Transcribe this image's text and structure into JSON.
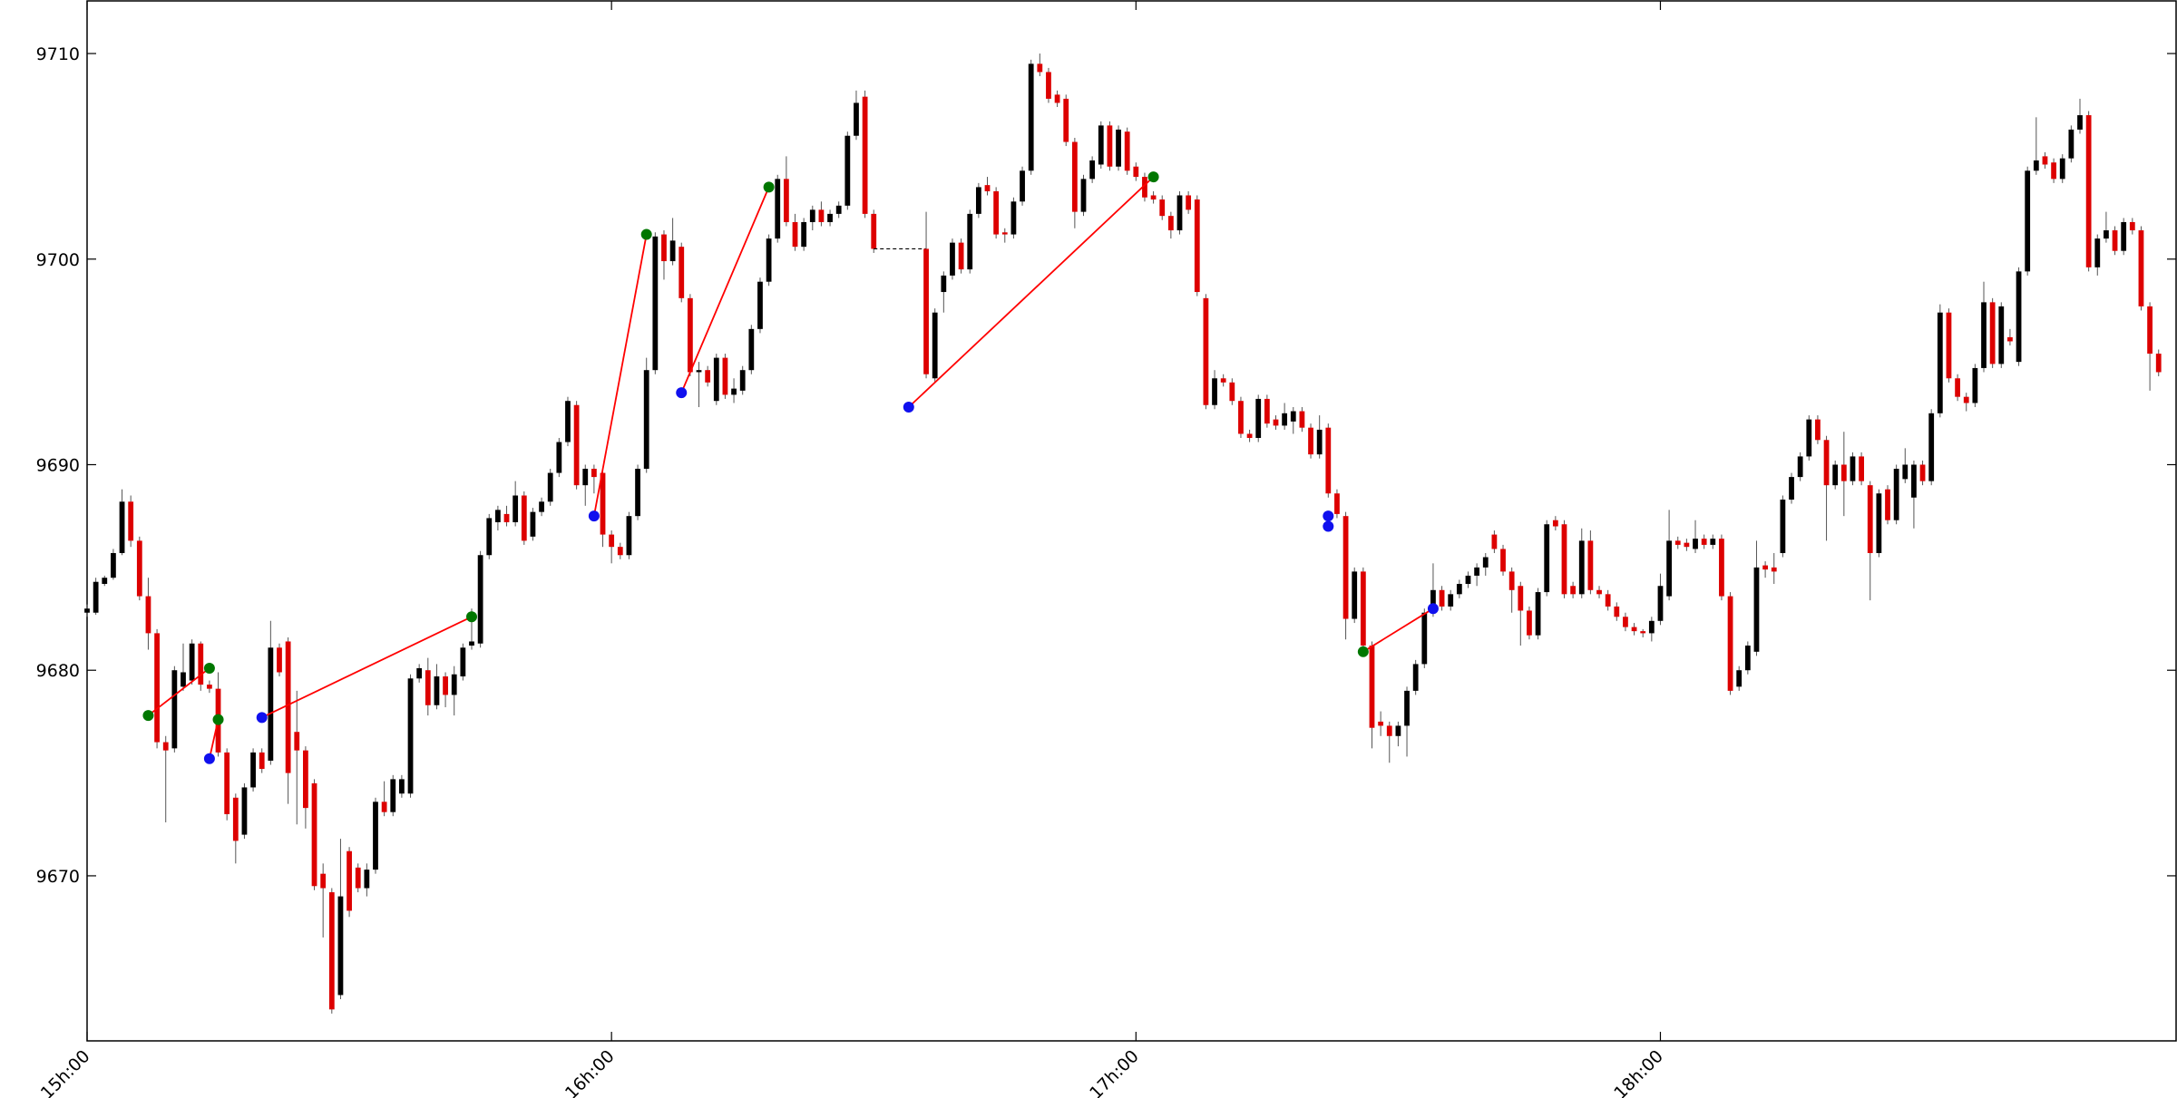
{
  "chart_data": {
    "type": "candlestick",
    "xlim": [
      0,
      239
    ],
    "ylim": [
      9661.97,
      9712.56
    ],
    "xticks": [
      {
        "value": 0,
        "label": "15h:00"
      },
      {
        "value": 60,
        "label": "16h:00"
      },
      {
        "value": 120,
        "label": "17h:00"
      },
      {
        "value": 180,
        "label": "18h:00"
      }
    ],
    "yticks": [
      9670,
      9680,
      9690,
      9700,
      9710
    ],
    "up_color": "#000000",
    "down_color": "#dd0000",
    "x": [
      0,
      1,
      2,
      3,
      4,
      5,
      6,
      7,
      8,
      9,
      10,
      11,
      12,
      13,
      14,
      15,
      16,
      17,
      18,
      19,
      20,
      21,
      22,
      23,
      24,
      25,
      26,
      27,
      28,
      29,
      30,
      31,
      32,
      33,
      34,
      35,
      36,
      37,
      38,
      39,
      40,
      41,
      42,
      43,
      44,
      45,
      46,
      47,
      48,
      49,
      50,
      51,
      52,
      53,
      54,
      55,
      56,
      57,
      58,
      59,
      60,
      61,
      62,
      63,
      64,
      65,
      66,
      67,
      68,
      69,
      70,
      71,
      72,
      73,
      74,
      75,
      76,
      77,
      78,
      79,
      80,
      81,
      82,
      83,
      84,
      85,
      86,
      87,
      88,
      89,
      90,
      96,
      97,
      98,
      99,
      100,
      101,
      102,
      103,
      104,
      105,
      106,
      107,
      108,
      109,
      110,
      111,
      112,
      113,
      114,
      115,
      116,
      117,
      118,
      119,
      120,
      121,
      122,
      123,
      124,
      125,
      126,
      127,
      128,
      129,
      130,
      131,
      132,
      133,
      134,
      135,
      136,
      137,
      138,
      139,
      140,
      141,
      142,
      143,
      144,
      145,
      146,
      147,
      148,
      149,
      150,
      151,
      152,
      153,
      154,
      155,
      156,
      157,
      158,
      159,
      160,
      161,
      162,
      163,
      164,
      165,
      166,
      167,
      168,
      169,
      170,
      171,
      172,
      173,
      174,
      175,
      176,
      177,
      178,
      179,
      180,
      181,
      182,
      183,
      184,
      185,
      186,
      187,
      188,
      189,
      190,
      191,
      192,
      193,
      194,
      195,
      196,
      197,
      198,
      199,
      200,
      201,
      202,
      203,
      204,
      205,
      206,
      207,
      208,
      209,
      210,
      211,
      212,
      213,
      214,
      215,
      216,
      217,
      218,
      219,
      220,
      221,
      222,
      223,
      224,
      225,
      226,
      227,
      228,
      229,
      230,
      231,
      232,
      233,
      234,
      235,
      236,
      237
    ],
    "open": [
      9682.8,
      9682.8,
      9684.2,
      9684.5,
      9685.7,
      9688.2,
      9686.3,
      9683.6,
      9681.8,
      9676.5,
      9676.2,
      9679.2,
      9679.5,
      9681.3,
      9679.3,
      9679.1,
      9676.0,
      9673.8,
      9672.0,
      9674.3,
      9676.0,
      9675.6,
      9681.1,
      9681.4,
      9677.0,
      9676.1,
      9674.5,
      9670.1,
      9669.2,
      9664.2,
      9671.2,
      9670.4,
      9669.4,
      9670.3,
      9673.6,
      9673.1,
      9674.0,
      9674.0,
      9679.6,
      9680.0,
      9678.3,
      9679.7,
      9678.8,
      9679.7,
      9681.2,
      9681.3,
      9685.6,
      9687.2,
      9687.6,
      9687.2,
      9688.5,
      9686.5,
      9687.7,
      9688.2,
      9689.6,
      9691.1,
      9692.9,
      9689.0,
      9689.8,
      9689.6,
      9686.6,
      9686.0,
      9685.6,
      9687.5,
      9689.8,
      9694.6,
      9701.2,
      9699.9,
      9700.6,
      9698.1,
      9694.5,
      9694.6,
      9693.1,
      9695.2,
      9693.4,
      9693.6,
      9694.6,
      9696.6,
      9698.9,
      9701.0,
      9703.9,
      9701.8,
      9700.6,
      9701.8,
      9702.4,
      9701.8,
      9702.2,
      9702.6,
      9706.0,
      9707.9,
      9702.2,
      9700.5,
      9694.2,
      9698.4,
      9699.2,
      9700.8,
      9699.5,
      9702.2,
      9703.6,
      9703.3,
      9701.3,
      9701.2,
      9702.8,
      9704.3,
      9709.5,
      9709.1,
      9708.0,
      9707.8,
      9705.7,
      9702.3,
      9703.9,
      9704.6,
      9706.5,
      9704.5,
      9706.2,
      9704.5,
      9704.0,
      9703.1,
      9702.9,
      9702.1,
      9701.4,
      9703.1,
      9702.9,
      9698.1,
      9692.9,
      9694.2,
      9694.0,
      9693.1,
      9691.5,
      9691.3,
      9693.2,
      9692.2,
      9691.9,
      9692.1,
      9692.6,
      9691.8,
      9690.5,
      9691.8,
      9688.6,
      9687.5,
      9682.5,
      9684.8,
      9681.2,
      9677.5,
      9677.3,
      9676.8,
      9677.3,
      9679.0,
      9680.3,
      9682.8,
      9683.9,
      9683.1,
      9683.7,
      9684.2,
      9684.6,
      9685.0,
      9686.6,
      9685.9,
      9684.8,
      9684.1,
      9682.9,
      9681.7,
      9683.8,
      9687.3,
      9687.1,
      9684.1,
      9683.7,
      9686.3,
      9683.9,
      9683.7,
      9683.1,
      9682.6,
      9682.1,
      9681.9,
      9681.8,
      9682.4,
      9683.6,
      9686.3,
      9686.2,
      9685.9,
      9686.4,
      9686.1,
      9686.4,
      9683.6,
      9679.2,
      9680.0,
      9680.9,
      9685.1,
      9685.0,
      9685.7,
      9688.3,
      9689.4,
      9690.4,
      9692.2,
      9691.2,
      9689.0,
      9690.0,
      9689.2,
      9690.4,
      9689.0,
      9685.7,
      9688.8,
      9687.3,
      9689.3,
      9688.4,
      9690.0,
      9689.2,
      9692.5,
      9697.4,
      9694.2,
      9693.3,
      9693.0,
      9694.7,
      9697.9,
      9694.9,
      9696.2,
      9695.0,
      9699.4,
      9704.3,
      9705.0,
      9704.7,
      9703.9,
      9704.9,
      9706.3,
      9707.0,
      9699.6,
      9701.0,
      9701.4,
      9700.4,
      9701.8,
      9701.4,
      9697.7,
      9695.4
    ],
    "high": [
      9683.2,
      9684.5,
      9684.6,
      9685.9,
      9688.8,
      9688.5,
      9686.5,
      9684.5,
      9682.0,
      9676.8,
      9680.2,
      9681.3,
      9681.5,
      9681.4,
      9679.5,
      9679.9,
      9676.2,
      9674.0,
      9674.5,
      9676.2,
      9676.2,
      9682.4,
      9681.3,
      9681.6,
      9679.0,
      9676.3,
      9674.7,
      9670.6,
      9669.4,
      9671.8,
      9671.4,
      9670.6,
      9670.6,
      9673.8,
      9674.6,
      9674.9,
      9674.9,
      9679.8,
      9680.3,
      9680.6,
      9680.3,
      9679.9,
      9680.2,
      9681.3,
      9683.0,
      9685.8,
      9687.6,
      9688.0,
      9688.0,
      9689.2,
      9688.7,
      9687.9,
      9688.4,
      9689.8,
      9691.3,
      9693.3,
      9693.1,
      9690.0,
      9690.0,
      9689.8,
      9686.8,
      9686.2,
      9687.7,
      9690.0,
      9695.2,
      9701.3,
      9701.4,
      9702.0,
      9700.8,
      9698.3,
      9695.0,
      9694.8,
      9695.4,
      9695.4,
      9694.2,
      9694.8,
      9696.8,
      9699.1,
      9701.2,
      9704.1,
      9705.0,
      9702.2,
      9702.0,
      9702.6,
      9702.8,
      9702.4,
      9702.8,
      9706.2,
      9708.2,
      9708.2,
      9702.4,
      9702.3,
      9697.6,
      9699.4,
      9701.0,
      9701.0,
      9702.4,
      9703.7,
      9704.0,
      9703.5,
      9701.5,
      9703.0,
      9704.5,
      9709.7,
      9710.0,
      9709.3,
      9708.2,
      9708.0,
      9705.9,
      9704.1,
      9705.0,
      9706.7,
      9706.7,
      9706.5,
      9706.4,
      9704.7,
      9704.2,
      9703.3,
      9703.1,
      9702.3,
      9703.3,
      9703.3,
      9703.1,
      9698.3,
      9694.6,
      9694.4,
      9694.2,
      9693.3,
      9691.7,
      9693.4,
      9693.4,
      9692.4,
      9693.0,
      9692.8,
      9692.8,
      9692.0,
      9692.4,
      9692.0,
      9688.8,
      9687.7,
      9685.0,
      9685.0,
      9681.4,
      9678.0,
      9677.5,
      9677.5,
      9679.2,
      9680.5,
      9683.0,
      9685.2,
      9684.1,
      9683.9,
      9684.4,
      9684.8,
      9685.2,
      9685.7,
      9686.8,
      9686.1,
      9685.0,
      9684.3,
      9683.1,
      9684.0,
      9687.3,
      9687.5,
      9687.3,
      9684.3,
      9686.9,
      9686.8,
      9684.1,
      9683.9,
      9683.3,
      9682.8,
      9682.3,
      9682.0,
      9682.6,
      9684.7,
      9687.8,
      9686.5,
      9686.4,
      9687.3,
      9686.6,
      9686.6,
      9686.6,
      9683.8,
      9680.2,
      9681.4,
      9686.3,
      9685.3,
      9685.7,
      9688.5,
      9689.6,
      9690.6,
      9692.4,
      9692.4,
      9691.4,
      9690.2,
      9691.6,
      9690.6,
      9690.6,
      9689.2,
      9688.8,
      9689.0,
      9690.0,
      9690.8,
      9690.2,
      9690.2,
      9692.7,
      9697.8,
      9697.6,
      9694.4,
      9693.5,
      9694.9,
      9698.9,
      9698.1,
      9697.9,
      9696.6,
      9699.6,
      9704.5,
      9706.9,
      9705.2,
      9704.9,
      9705.1,
      9706.5,
      9707.8,
      9707.2,
      9701.2,
      9702.3,
      9701.6,
      9702.0,
      9702.0,
      9701.6,
      9697.9,
      9695.6
    ],
    "low": [
      9682.6,
      9682.7,
      9684.1,
      9684.4,
      9685.6,
      9686.0,
      9683.4,
      9681.0,
      9676.2,
      9672.6,
      9676.0,
      9679.0,
      9679.3,
      9679.0,
      9678.9,
      9675.8,
      9672.7,
      9670.6,
      9671.8,
      9674.1,
      9675.0,
      9675.4,
      9679.7,
      9673.5,
      9672.5,
      9672.3,
      9669.3,
      9667.0,
      9663.3,
      9664.0,
      9668.0,
      9669.2,
      9669.0,
      9670.1,
      9672.9,
      9672.9,
      9673.8,
      9673.8,
      9679.4,
      9677.8,
      9678.1,
      9678.2,
      9677.8,
      9679.5,
      9681.0,
      9681.1,
      9685.4,
      9686.8,
      9687.0,
      9687.0,
      9686.1,
      9686.3,
      9687.5,
      9688.0,
      9689.4,
      9690.9,
      9688.8,
      9688.0,
      9688.6,
      9686.0,
      9685.2,
      9685.4,
      9685.4,
      9687.3,
      9689.6,
      9694.4,
      9699.0,
      9699.7,
      9697.9,
      9694.3,
      9692.8,
      9693.8,
      9692.9,
      9693.2,
      9693.0,
      9693.4,
      9694.4,
      9696.4,
      9698.7,
      9700.8,
      9701.6,
      9700.4,
      9700.4,
      9701.4,
      9701.6,
      9701.6,
      9702.0,
      9702.4,
      9705.8,
      9702.0,
      9700.3,
      9694.2,
      9694.0,
      9697.4,
      9699.0,
      9699.3,
      9699.3,
      9702.0,
      9703.1,
      9701.0,
      9700.8,
      9701.0,
      9702.6,
      9704.1,
      9708.9,
      9707.6,
      9707.4,
      9705.5,
      9701.5,
      9702.1,
      9703.7,
      9704.4,
      9704.3,
      9704.3,
      9704.1,
      9703.8,
      9702.8,
      9702.7,
      9701.9,
      9701.0,
      9701.2,
      9702.2,
      9698.2,
      9692.7,
      9692.7,
      9693.8,
      9692.9,
      9691.3,
      9691.1,
      9691.1,
      9691.8,
      9691.7,
      9691.7,
      9691.5,
      9691.6,
      9690.3,
      9690.3,
      9688.4,
      9687.4,
      9681.5,
      9682.3,
      9681.0,
      9676.2,
      9676.8,
      9675.5,
      9676.3,
      9675.8,
      9678.8,
      9680.1,
      9682.6,
      9682.9,
      9682.9,
      9683.5,
      9684.0,
      9684.1,
      9684.6,
      9685.7,
      9684.6,
      9682.8,
      9681.2,
      9681.5,
      9681.5,
      9683.6,
      9686.8,
      9683.5,
      9683.5,
      9683.5,
      9683.7,
      9683.5,
      9682.9,
      9682.4,
      9681.9,
      9681.7,
      9681.6,
      9681.4,
      9682.2,
      9683.4,
      9685.9,
      9685.8,
      9685.7,
      9685.9,
      9685.9,
      9683.4,
      9678.8,
      9679.0,
      9679.8,
      9680.7,
      9684.5,
      9684.2,
      9685.5,
      9688.1,
      9689.2,
      9690.2,
      9691.0,
      9686.3,
      9688.8,
      9687.5,
      9689.0,
      9689.0,
      9683.4,
      9685.5,
      9687.1,
      9687.1,
      9689.1,
      9686.9,
      9689.0,
      9689.0,
      9692.3,
      9694.0,
      9693.1,
      9692.6,
      9692.8,
      9694.5,
      9694.7,
      9694.7,
      9695.8,
      9694.8,
      9699.2,
      9704.1,
      9704.4,
      9703.7,
      9703.7,
      9704.7,
      9706.1,
      9699.4,
      9699.2,
      9700.8,
      9700.2,
      9700.2,
      9701.2,
      9697.5,
      9693.6,
      9694.3
    ],
    "close": [
      9683.0,
      9684.3,
      9684.5,
      9685.7,
      9688.2,
      9686.3,
      9683.6,
      9681.8,
      9676.5,
      9676.1,
      9680.0,
      9679.9,
      9681.3,
      9679.3,
      9679.1,
      9676.0,
      9673.0,
      9671.7,
      9674.3,
      9676.0,
      9675.2,
      9681.1,
      9679.9,
      9675.0,
      9676.1,
      9673.3,
      9669.5,
      9669.4,
      9663.5,
      9669.0,
      9668.3,
      9669.4,
      9670.3,
      9673.6,
      9673.1,
      9674.7,
      9674.7,
      9679.6,
      9680.1,
      9678.3,
      9679.7,
      9678.8,
      9679.8,
      9681.1,
      9681.4,
      9685.6,
      9687.4,
      9687.8,
      9687.2,
      9688.5,
      9686.3,
      9687.7,
      9688.2,
      9689.6,
      9691.1,
      9693.1,
      9689.0,
      9689.8,
      9689.4,
      9686.6,
      9686.0,
      9685.6,
      9687.5,
      9689.8,
      9694.6,
      9701.1,
      9699.9,
      9700.9,
      9698.1,
      9694.5,
      9694.6,
      9694.0,
      9695.2,
      9693.4,
      9693.7,
      9694.6,
      9696.6,
      9698.9,
      9701.0,
      9703.9,
      9701.8,
      9700.6,
      9701.8,
      9702.4,
      9701.8,
      9702.2,
      9702.6,
      9706.0,
      9707.6,
      9702.2,
      9700.5,
      9694.4,
      9697.4,
      9699.2,
      9700.8,
      9699.5,
      9702.2,
      9703.5,
      9703.3,
      9701.2,
      9701.2,
      9702.8,
      9704.3,
      9709.5,
      9709.1,
      9707.8,
      9707.6,
      9705.7,
      9702.3,
      9703.9,
      9704.8,
      9706.5,
      9704.5,
      9706.3,
      9704.3,
      9704.0,
      9703.0,
      9702.9,
      9702.1,
      9701.4,
      9703.1,
      9702.4,
      9698.4,
      9692.9,
      9694.2,
      9694.0,
      9693.1,
      9691.5,
      9691.3,
      9693.2,
      9692.0,
      9691.9,
      9692.5,
      9692.6,
      9691.8,
      9690.5,
      9691.7,
      9688.6,
      9687.6,
      9682.5,
      9684.8,
      9681.2,
      9677.2,
      9677.3,
      9676.8,
      9677.3,
      9679.0,
      9680.3,
      9682.8,
      9683.9,
      9683.1,
      9683.7,
      9684.2,
      9684.6,
      9685.0,
      9685.5,
      9685.9,
      9684.8,
      9683.9,
      9682.9,
      9681.7,
      9683.8,
      9687.1,
      9687.0,
      9683.7,
      9683.7,
      9686.3,
      9683.9,
      9683.7,
      9683.1,
      9682.6,
      9682.1,
      9681.9,
      9681.8,
      9682.4,
      9684.1,
      9686.3,
      9686.1,
      9686.0,
      9686.4,
      9686.1,
      9686.4,
      9683.6,
      9679.0,
      9680.0,
      9681.2,
      9685.0,
      9684.9,
      9684.8,
      9688.3,
      9689.4,
      9690.4,
      9692.2,
      9691.2,
      9689.0,
      9690.0,
      9689.2,
      9690.4,
      9689.2,
      9685.7,
      9688.6,
      9687.3,
      9689.8,
      9690.0,
      9690.0,
      9689.2,
      9692.5,
      9697.4,
      9694.2,
      9693.3,
      9693.0,
      9694.7,
      9697.9,
      9694.9,
      9697.7,
      9696.0,
      9699.4,
      9704.3,
      9704.8,
      9704.6,
      9703.9,
      9704.9,
      9706.3,
      9707.0,
      9699.6,
      9701.0,
      9701.4,
      9700.4,
      9701.8,
      9701.4,
      9697.7,
      9695.4,
      9694.5
    ],
    "trade_color": "#ff0000",
    "trades": [
      {
        "x": [
          7,
          14
        ],
        "y": [
          9677.8,
          9680.1
        ]
      },
      {
        "x": [
          14,
          15
        ],
        "y": [
          9675.7,
          9677.6
        ]
      },
      {
        "x": [
          20,
          44
        ],
        "y": [
          9677.7,
          9682.6
        ]
      },
      {
        "x": [
          58,
          64
        ],
        "y": [
          9687.5,
          9701.2
        ]
      },
      {
        "x": [
          68,
          78
        ],
        "y": [
          9693.5,
          9703.5
        ]
      },
      {
        "x": [
          94,
          122
        ],
        "y": [
          9692.8,
          9704
        ]
      },
      {
        "x": [
          146,
          154
        ],
        "y": [
          9680.9,
          9683
        ]
      }
    ],
    "markers": [
      {
        "color": "#007700",
        "x": [
          7,
          14,
          15,
          44,
          64,
          78,
          122,
          146
        ],
        "values": [
          9677.8,
          9680.1,
          9677.6,
          9682.6,
          9701.2,
          9703.5,
          9704,
          9680.9
        ]
      },
      {
        "color": "#1010ee",
        "x": [
          14,
          20,
          58,
          68,
          94,
          142,
          142,
          154
        ],
        "values": [
          9675.7,
          9677.7,
          9687.5,
          9693.5,
          9692.8,
          9687.5,
          9687,
          9683
        ]
      }
    ]
  }
}
